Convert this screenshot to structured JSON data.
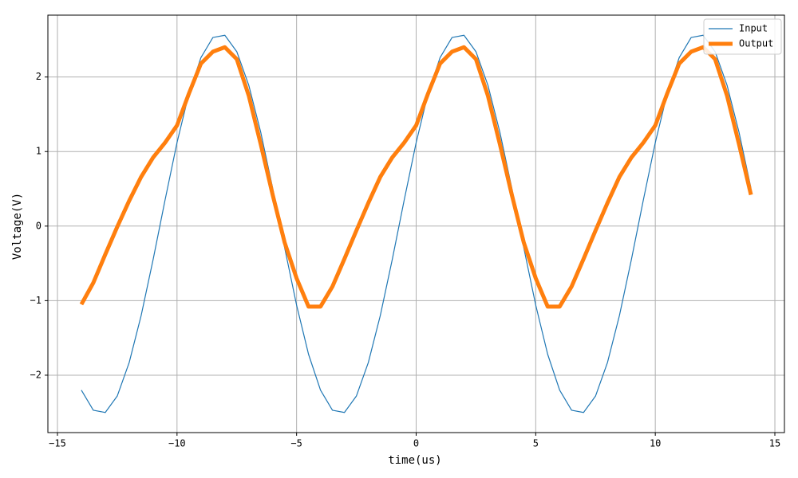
{
  "chart_data": {
    "type": "line",
    "xlabel": "time(us)",
    "ylabel": "Voltage(V)",
    "x": [
      -14,
      -13.5,
      -13,
      -12.5,
      -12,
      -11.5,
      -11,
      -10.5,
      -10,
      -9.5,
      -9,
      -8.5,
      -8,
      -7.5,
      -7,
      -6.5,
      -6,
      -5.5,
      -5,
      -4.5,
      -4,
      -3.5,
      -3,
      -2.5,
      -2,
      -1.5,
      -1,
      -0.5,
      0,
      0.5,
      1,
      1.5,
      2,
      2.5,
      3,
      3.5,
      4,
      4.5,
      5,
      5.5,
      6,
      6.5,
      7,
      7.5,
      8,
      8.5,
      9,
      9.5,
      10,
      10.5,
      11,
      11.5,
      12,
      12.5,
      13,
      13.5,
      14
    ],
    "series": [
      {
        "name": "Input",
        "color": "#1f77b4",
        "values": [
          -2.2,
          -2.47,
          -2.5,
          -2.28,
          -1.83,
          -1.2,
          -0.45,
          0.35,
          1.12,
          1.78,
          2.26,
          2.53,
          2.56,
          2.34,
          1.89,
          1.26,
          0.51,
          -0.29,
          -1.06,
          -1.72,
          -2.2,
          -2.47,
          -2.5,
          -2.28,
          -1.83,
          -1.2,
          -0.45,
          0.35,
          1.12,
          1.78,
          2.26,
          2.53,
          2.56,
          2.34,
          1.89,
          1.26,
          0.51,
          -0.29,
          -1.06,
          -1.72,
          -2.2,
          -2.47,
          -2.5,
          -2.28,
          -1.83,
          -1.2,
          -0.45,
          0.35,
          1.12,
          1.78,
          2.26,
          2.53,
          2.56,
          2.34,
          1.89,
          1.26,
          0.51
        ]
      },
      {
        "name": "Output",
        "color": "#ff7f0e",
        "values": [
          -1.05,
          -0.76,
          -0.38,
          -0.01,
          0.34,
          0.66,
          0.92,
          1.12,
          1.35,
          1.78,
          2.18,
          2.34,
          2.4,
          2.24,
          1.75,
          1.1,
          0.42,
          -0.22,
          -0.7,
          -1.08,
          -1.08,
          -0.81,
          -0.44,
          -0.06,
          0.31,
          0.66,
          0.92,
          1.12,
          1.35,
          1.78,
          2.18,
          2.34,
          2.4,
          2.24,
          1.75,
          1.1,
          0.42,
          -0.22,
          -0.7,
          -1.08,
          -1.08,
          -0.81,
          -0.44,
          -0.06,
          0.31,
          0.66,
          0.92,
          1.12,
          1.35,
          1.78,
          2.18,
          2.34,
          2.4,
          2.24,
          1.75,
          1.1,
          0.42
        ]
      }
    ],
    "xlim": [
      -15.4,
      15.4
    ],
    "ylim": [
      -2.77,
      2.83
    ],
    "xticks": [
      {
        "value": -15,
        "label": "−15"
      },
      {
        "value": -10,
        "label": "−10"
      },
      {
        "value": -5,
        "label": "−5"
      },
      0,
      5,
      10,
      15
    ],
    "yticks": [
      {
        "value": -2,
        "label": "−2"
      },
      {
        "value": -1,
        "label": "−1"
      },
      0,
      1,
      2
    ],
    "grid": true,
    "legend": "upper right"
  }
}
